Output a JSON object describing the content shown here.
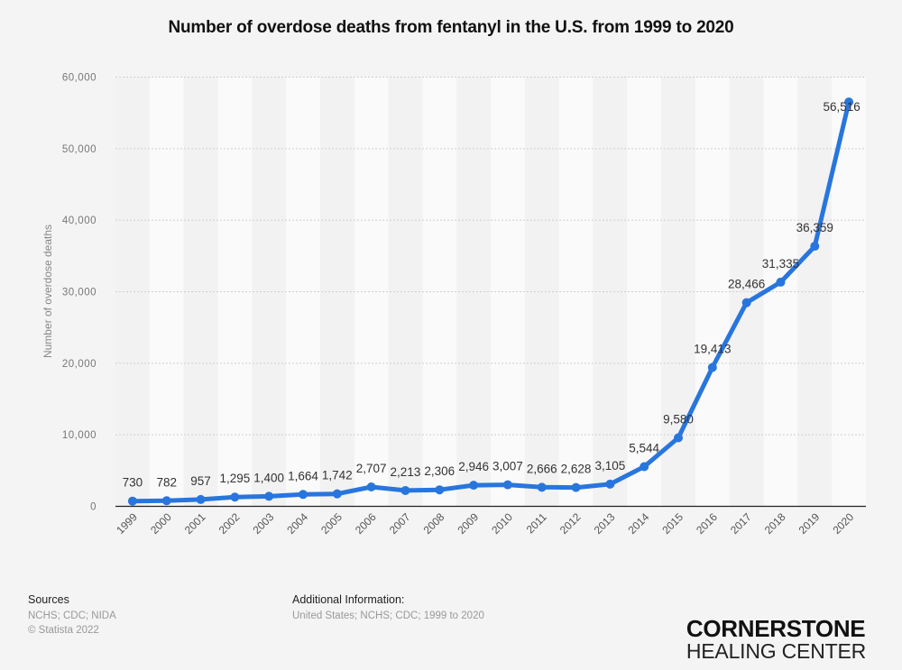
{
  "chart_data": {
    "type": "line",
    "title": "Number of overdose deaths from fentanyl in the U.S. from 1999 to 2020",
    "xlabel": "",
    "ylabel": "Number of overdose deaths",
    "ylim": [
      0,
      60000
    ],
    "yticks": [
      0,
      10000,
      20000,
      30000,
      40000,
      50000,
      60000
    ],
    "ytick_labels": [
      "0",
      "10,000",
      "20,000",
      "30,000",
      "40,000",
      "50,000",
      "60,000"
    ],
    "grid": true,
    "legend": "none",
    "categories": [
      "1999",
      "2000",
      "2001",
      "2002",
      "2003",
      "2004",
      "2005",
      "2006",
      "2007",
      "2008",
      "2009",
      "2010",
      "2011",
      "2012",
      "2013",
      "2014",
      "2015",
      "2016",
      "2017",
      "2018",
      "2019",
      "2020"
    ],
    "series": [
      {
        "name": "Number of overdose deaths",
        "color": "#2876dd",
        "values": [
          730,
          782,
          957,
          1295,
          1400,
          1664,
          1742,
          2707,
          2213,
          2306,
          2946,
          3007,
          2666,
          2628,
          3105,
          5544,
          9580,
          19413,
          28466,
          31335,
          36359,
          56516
        ],
        "labels": [
          "730",
          "782",
          "957",
          "1,295",
          "1,400",
          "1,664",
          "1,742",
          "2,707",
          "2,213",
          "2,306",
          "2,946",
          "3,007",
          "2,666",
          "2,628",
          "3,105",
          "5,544",
          "9,580",
          "19,413",
          "28,466",
          "31,335",
          "36,359",
          "56,516"
        ]
      }
    ]
  },
  "footer": {
    "sources_heading": "Sources",
    "sources_text": "NCHS; CDC; NIDA",
    "copyright": "© Statista 2022",
    "additional_heading": "Additional Information:",
    "additional_text": "United States; NCHS; CDC; 1999 to 2020"
  },
  "brand": {
    "line1": "CORNERSTONE",
    "line2": "HEALING CENTER"
  }
}
